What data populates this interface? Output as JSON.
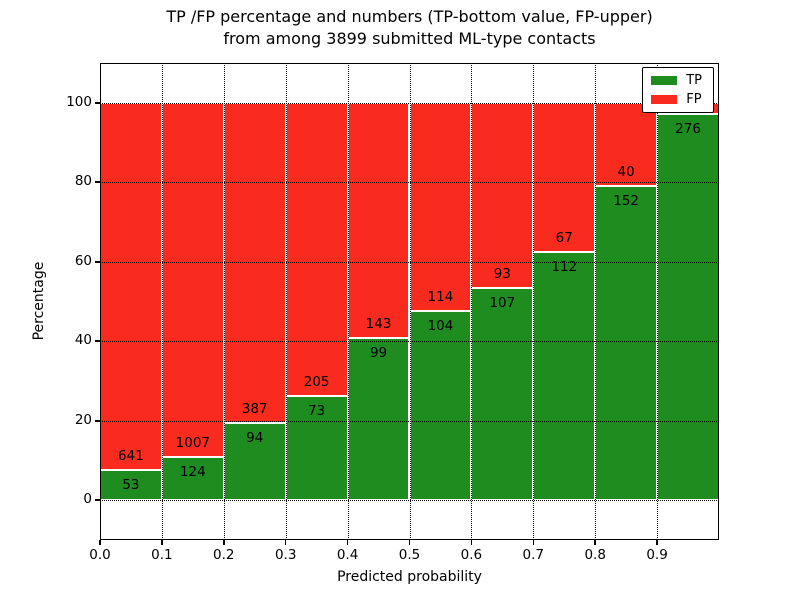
{
  "title": {
    "line1": "TP /FP percentage and numbers (TP-bottom value, FP-upper)",
    "line2": "from among 3899 submitted ML-type contacts"
  },
  "axes": {
    "xlabel": "Predicted probability",
    "ylabel": "Percentage"
  },
  "chart_data": {
    "type": "bar",
    "variant": "stacked-percentage-histogram",
    "title": "TP /FP percentage and numbers (TP-bottom value, FP-upper) from among 3899 submitted ML-type contacts",
    "xlabel": "Predicted probability",
    "ylabel": "Percentage",
    "total_contacts": 3899,
    "xlim": [
      0.0,
      1.0
    ],
    "ylim": [
      -10,
      110
    ],
    "bar_width": 0.1,
    "grid": true,
    "grid_style": "dotted",
    "legend_position": "upper right",
    "yticks": [
      0,
      20,
      40,
      60,
      80,
      100
    ],
    "xticks": [
      0.0,
      0.1,
      0.2,
      0.3,
      0.4,
      0.5,
      0.6,
      0.7,
      0.8,
      0.9
    ],
    "xtick_labels": [
      "0.0",
      "0.1",
      "0.2",
      "0.3",
      "0.4",
      "0.5",
      "0.6",
      "0.7",
      "0.8",
      "0.9"
    ],
    "series": [
      {
        "name": "TP",
        "color": "#1e8c1e"
      },
      {
        "name": "FP",
        "color": "#f92b1e"
      }
    ],
    "bar_edge_color": "#ffffff",
    "bars": [
      {
        "bin": "0.0-0.1",
        "tp": 53,
        "fp": 641,
        "tp_label": "53",
        "fp_label": "641"
      },
      {
        "bin": "0.1-0.2",
        "tp": 124,
        "fp": 1007,
        "tp_label": "124",
        "fp_label": "1007"
      },
      {
        "bin": "0.2-0.3",
        "tp": 94,
        "fp": 387,
        "tp_label": "94",
        "fp_label": "387"
      },
      {
        "bin": "0.3-0.4",
        "tp": 73,
        "fp": 205,
        "tp_label": "73",
        "fp_label": "205"
      },
      {
        "bin": "0.4-0.5",
        "tp": 99,
        "fp": 143,
        "tp_label": "99",
        "fp_label": "143"
      },
      {
        "bin": "0.5-0.6",
        "tp": 104,
        "fp": 114,
        "tp_label": "104",
        "fp_label": "114"
      },
      {
        "bin": "0.6-0.7",
        "tp": 107,
        "fp": 93,
        "tp_label": "107",
        "fp_label": "93"
      },
      {
        "bin": "0.7-0.8",
        "tp": 112,
        "fp": 67,
        "tp_label": "112",
        "fp_label": "67"
      },
      {
        "bin": "0.8-0.9",
        "tp": 152,
        "fp": 40,
        "tp_label": "152",
        "fp_label": "40"
      },
      {
        "bin": "0.9-1.0",
        "tp": 276,
        "fp": 8,
        "tp_label": "276",
        "fp_label": ""
      }
    ]
  }
}
